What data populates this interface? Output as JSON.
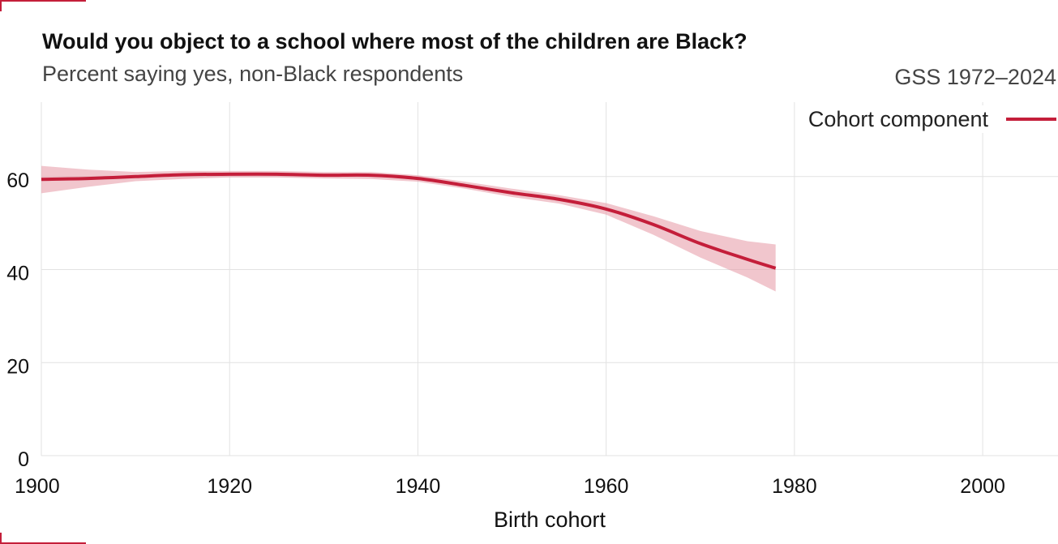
{
  "header": {
    "title": "Would you object to a school where most of the children are Black?",
    "subtitle": "Percent saying yes, non-Black respondents",
    "source": "GSS 1972–2024"
  },
  "colors": {
    "series": "#c41e3a",
    "band": "#e8a0ab",
    "grid": "#e2e2e2",
    "corner": "#c41e3a"
  },
  "chart_data": {
    "type": "line",
    "title": "Would you object to a school where most of the children are Black?",
    "subtitle": "Percent saying yes, non-Black respondents",
    "xlabel": "Birth cohort",
    "ylabel": "",
    "xlim": [
      1900,
      2008
    ],
    "ylim": [
      0,
      76
    ],
    "x_ticks": [
      1900,
      1920,
      1940,
      1960,
      1980,
      2000
    ],
    "y_ticks": [
      0,
      20,
      40,
      60
    ],
    "grid": true,
    "legend": {
      "position": "top-right",
      "entries": [
        "Cohort component"
      ]
    },
    "series": [
      {
        "name": "Cohort component",
        "x": [
          1900,
          1905,
          1910,
          1915,
          1920,
          1925,
          1930,
          1935,
          1940,
          1945,
          1950,
          1955,
          1960,
          1965,
          1970,
          1975,
          1978
        ],
        "y": [
          59.4,
          59.6,
          60.0,
          60.4,
          60.5,
          60.5,
          60.3,
          60.3,
          59.6,
          58.1,
          56.5,
          55.1,
          53.0,
          49.7,
          45.6,
          42.2,
          40.3
        ],
        "lower": [
          56.4,
          57.8,
          59.0,
          59.5,
          59.8,
          59.8,
          59.6,
          59.5,
          58.9,
          57.4,
          55.6,
          54.2,
          51.8,
          47.5,
          42.6,
          38.3,
          35.3
        ],
        "upper": [
          62.3,
          61.5,
          61.0,
          61.2,
          61.2,
          61.2,
          61.0,
          61.0,
          60.3,
          58.9,
          57.4,
          56.0,
          54.3,
          51.5,
          48.3,
          46.1,
          45.4
        ]
      }
    ]
  }
}
